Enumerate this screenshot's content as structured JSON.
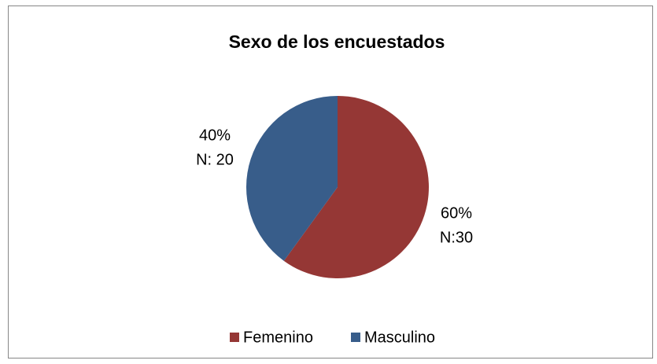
{
  "chart_data": {
    "type": "pie",
    "title": "Sexo de los encuestados",
    "categories": [
      "Femenino",
      "Masculino"
    ],
    "values": [
      60,
      40
    ],
    "value_labels": [
      "60%",
      "40%"
    ],
    "counts": [
      30,
      20
    ],
    "count_labels": [
      "N:30",
      "N: 20"
    ],
    "colors": [
      "#953735",
      "#385d8a"
    ],
    "legend": "bottom"
  }
}
